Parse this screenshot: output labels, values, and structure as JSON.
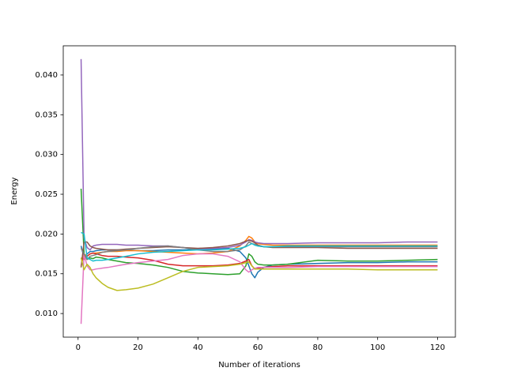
{
  "chart_data": {
    "type": "line",
    "xlabel": "Number of iterations",
    "ylabel": "Energy",
    "x": [
      1,
      2,
      3,
      4,
      5,
      6,
      8,
      10,
      13,
      16,
      20,
      25,
      30,
      35,
      40,
      45,
      50,
      54,
      56,
      57,
      58,
      59,
      60,
      62,
      65,
      70,
      80,
      90,
      100,
      110,
      120
    ],
    "xlim": [
      -4.95,
      125.95
    ],
    "xticks": [
      0,
      20,
      40,
      60,
      80,
      100,
      120
    ],
    "ylim": [
      0.00703,
      0.04367
    ],
    "yticks": [
      {
        "value": 0.01,
        "label": "0.010"
      },
      {
        "value": 0.015,
        "label": "0.015"
      },
      {
        "value": 0.02,
        "label": "0.020"
      },
      {
        "value": 0.025,
        "label": "0.025"
      },
      {
        "value": 0.03,
        "label": "0.030"
      },
      {
        "value": 0.035,
        "label": "0.035"
      },
      {
        "value": 0.04,
        "label": "0.040"
      }
    ],
    "grid": false,
    "series": [
      {
        "color": "#1f77b4",
        "values": [
          0.0185,
          0.017,
          0.0175,
          0.0178,
          0.0178,
          0.0179,
          0.018,
          0.018,
          0.018,
          0.018,
          0.0179,
          0.0179,
          0.018,
          0.018,
          0.0181,
          0.0181,
          0.0182,
          0.0178,
          0.017,
          0.016,
          0.015,
          0.0145,
          0.0152,
          0.0158,
          0.0161,
          0.0162,
          0.0163,
          0.0164,
          0.0164,
          0.0165,
          0.0165
        ]
      },
      {
        "color": "#ff7f0e",
        "values": [
          0.016,
          0.0175,
          0.0172,
          0.0175,
          0.0176,
          0.0176,
          0.0177,
          0.0178,
          0.0178,
          0.0179,
          0.0179,
          0.0178,
          0.0177,
          0.0176,
          0.0175,
          0.0176,
          0.0178,
          0.0185,
          0.0192,
          0.0197,
          0.0195,
          0.019,
          0.0188,
          0.0187,
          0.0186,
          0.0186,
          0.0186,
          0.0186,
          0.0186,
          0.0186,
          0.0186
        ]
      },
      {
        "color": "#2ca02c",
        "values": [
          0.0257,
          0.0175,
          0.0168,
          0.017,
          0.0169,
          0.0171,
          0.017,
          0.0168,
          0.0166,
          0.0164,
          0.0163,
          0.0161,
          0.0158,
          0.0153,
          0.0151,
          0.015,
          0.0149,
          0.015,
          0.016,
          0.0175,
          0.0172,
          0.0165,
          0.0162,
          0.0161,
          0.0161,
          0.0162,
          0.0167,
          0.0166,
          0.0166,
          0.0167,
          0.0168
        ]
      },
      {
        "color": "#d62728",
        "values": [
          0.017,
          0.0168,
          0.0172,
          0.0175,
          0.0176,
          0.0175,
          0.0173,
          0.0172,
          0.0172,
          0.0171,
          0.017,
          0.0167,
          0.0162,
          0.016,
          0.016,
          0.016,
          0.0161,
          0.0163,
          0.0166,
          0.0168,
          0.016,
          0.0156,
          0.0157,
          0.0158,
          0.0159,
          0.016,
          0.016,
          0.016,
          0.016,
          0.016,
          0.016
        ]
      },
      {
        "color": "#9467bd",
        "values": [
          0.042,
          0.0195,
          0.0183,
          0.018,
          0.0185,
          0.0186,
          0.0187,
          0.0187,
          0.0187,
          0.0186,
          0.0186,
          0.0185,
          0.0185,
          0.0183,
          0.0181,
          0.0182,
          0.0183,
          0.0186,
          0.019,
          0.0193,
          0.0192,
          0.019,
          0.0189,
          0.0188,
          0.0188,
          0.0188,
          0.0189,
          0.0189,
          0.0189,
          0.019,
          0.019
        ]
      },
      {
        "color": "#8c564b",
        "values": [
          0.0158,
          0.019,
          0.019,
          0.0185,
          0.0183,
          0.0182,
          0.0181,
          0.018,
          0.018,
          0.0181,
          0.0182,
          0.0183,
          0.0184,
          0.0183,
          0.0182,
          0.0183,
          0.0185,
          0.0188,
          0.0191,
          0.0192,
          0.0191,
          0.0189,
          0.0186,
          0.0184,
          0.0183,
          0.0183,
          0.0183,
          0.0182,
          0.0182,
          0.0182,
          0.0182
        ]
      },
      {
        "color": "#e377c2",
        "values": [
          0.0087,
          0.0175,
          0.016,
          0.0155,
          0.0155,
          0.0156,
          0.0157,
          0.0158,
          0.016,
          0.0162,
          0.0164,
          0.0166,
          0.0168,
          0.0173,
          0.0175,
          0.0175,
          0.0172,
          0.0165,
          0.0155,
          0.0152,
          0.0155,
          0.0157,
          0.0158,
          0.0158,
          0.0158,
          0.0158,
          0.0159,
          0.0159,
          0.0159,
          0.0159,
          0.0159
        ]
      },
      {
        "color": "#7f7f7f",
        "values": [
          0.0182,
          0.0175,
          0.0168,
          0.0172,
          0.0173,
          0.0174,
          0.0177,
          0.0178,
          0.0179,
          0.018,
          0.0182,
          0.0184,
          0.0185,
          0.0183,
          0.018,
          0.0178,
          0.0178,
          0.018,
          0.0185,
          0.019,
          0.0188,
          0.0187,
          0.0185,
          0.0184,
          0.0184,
          0.0184,
          0.0184,
          0.0184,
          0.0184,
          0.0184,
          0.0184
        ]
      },
      {
        "color": "#bcbd22",
        "values": [
          0.017,
          0.0155,
          0.0162,
          0.0158,
          0.015,
          0.0145,
          0.0138,
          0.0133,
          0.0129,
          0.013,
          0.0132,
          0.0137,
          0.0145,
          0.0153,
          0.0158,
          0.0159,
          0.016,
          0.0162,
          0.0164,
          0.0165,
          0.016,
          0.0156,
          0.0156,
          0.0156,
          0.0156,
          0.0156,
          0.0156,
          0.0156,
          0.0155,
          0.0155,
          0.0155
        ]
      },
      {
        "color": "#17becf",
        "values": [
          0.0202,
          0.02,
          0.017,
          0.0168,
          0.0166,
          0.0167,
          0.0167,
          0.0168,
          0.017,
          0.0172,
          0.0175,
          0.0177,
          0.0178,
          0.0179,
          0.018,
          0.018,
          0.0181,
          0.0182,
          0.0184,
          0.0186,
          0.0188,
          0.0186,
          0.0185,
          0.0184,
          0.0184,
          0.0185,
          0.0185,
          0.0185,
          0.0185,
          0.0185,
          0.0185
        ]
      }
    ]
  }
}
